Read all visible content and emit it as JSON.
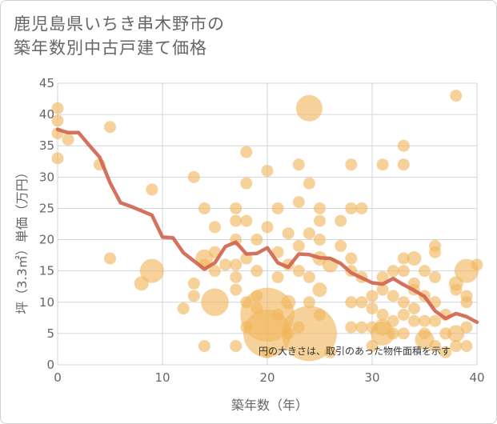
{
  "title_lines": [
    "鹿児島県いちき串木野市の",
    "築年数別中古戸建て価格"
  ],
  "colors": {
    "bubble": "#f0b65c",
    "line": "#d0634c",
    "grid": "#cfd6de",
    "text": "#666666"
  },
  "chart_data": {
    "type": "scatter",
    "xlabel": "築年数（年）",
    "ylabel": "坪（3.3㎡）単価（万円）",
    "xlim": [
      0,
      40
    ],
    "ylim": [
      0,
      45
    ],
    "x_ticks": [
      0,
      10,
      20,
      30,
      40
    ],
    "y_ticks": [
      0,
      5,
      10,
      15,
      20,
      25,
      30,
      35,
      40,
      45
    ],
    "annotation": "円の大きさは、取引のあった物件面積を示す",
    "bubbles": [
      {
        "x": 0,
        "y": 41,
        "s": 1
      },
      {
        "x": 0,
        "y": 39,
        "s": 1
      },
      {
        "x": 0,
        "y": 37,
        "s": 1
      },
      {
        "x": 0,
        "y": 33,
        "s": 1
      },
      {
        "x": 1,
        "y": 36,
        "s": 1
      },
      {
        "x": 4,
        "y": 32,
        "s": 1
      },
      {
        "x": 5,
        "y": 38,
        "s": 1
      },
      {
        "x": 5,
        "y": 17,
        "s": 1
      },
      {
        "x": 8,
        "y": 13,
        "s": 1.2
      },
      {
        "x": 9,
        "y": 15,
        "s": 2
      },
      {
        "x": 9,
        "y": 28,
        "s": 1
      },
      {
        "x": 12,
        "y": 9,
        "s": 1
      },
      {
        "x": 13,
        "y": 30,
        "s": 1
      },
      {
        "x": 13,
        "y": 13,
        "s": 1
      },
      {
        "x": 13,
        "y": 11,
        "s": 1
      },
      {
        "x": 14,
        "y": 25,
        "s": 1
      },
      {
        "x": 14,
        "y": 17,
        "s": 1.5
      },
      {
        "x": 14,
        "y": 16,
        "s": 1
      },
      {
        "x": 14,
        "y": 3,
        "s": 1
      },
      {
        "x": 15,
        "y": 22,
        "s": 1
      },
      {
        "x": 15,
        "y": 15,
        "s": 1
      },
      {
        "x": 15,
        "y": 10,
        "s": 2.3
      },
      {
        "x": 15,
        "y": 18,
        "s": 1
      },
      {
        "x": 16,
        "y": 16,
        "s": 1
      },
      {
        "x": 17,
        "y": 25,
        "s": 1
      },
      {
        "x": 17,
        "y": 23,
        "s": 1
      },
      {
        "x": 17,
        "y": 20,
        "s": 1
      },
      {
        "x": 17,
        "y": 16,
        "s": 1
      },
      {
        "x": 17,
        "y": 14,
        "s": 1
      },
      {
        "x": 17,
        "y": 12,
        "s": 1
      },
      {
        "x": 17,
        "y": 3,
        "s": 1
      },
      {
        "x": 18,
        "y": 34,
        "s": 1
      },
      {
        "x": 18,
        "y": 29,
        "s": 1
      },
      {
        "x": 18,
        "y": 23,
        "s": 1
      },
      {
        "x": 18,
        "y": 17,
        "s": 1
      },
      {
        "x": 18,
        "y": 10,
        "s": 1
      },
      {
        "x": 18,
        "y": 6,
        "s": 1
      },
      {
        "x": 19,
        "y": 20,
        "s": 1
      },
      {
        "x": 19,
        "y": 15,
        "s": 1
      },
      {
        "x": 19,
        "y": 11,
        "s": 1
      },
      {
        "x": 19,
        "y": 9,
        "s": 1
      },
      {
        "x": 20,
        "y": 31,
        "s": 1
      },
      {
        "x": 20,
        "y": 22,
        "s": 1
      },
      {
        "x": 20,
        "y": 8,
        "s": 4.5
      },
      {
        "x": 20,
        "y": 5,
        "s": 4
      },
      {
        "x": 20,
        "y": 2,
        "s": 1
      },
      {
        "x": 21,
        "y": 25,
        "s": 1
      },
      {
        "x": 21,
        "y": 18,
        "s": 1
      },
      {
        "x": 21,
        "y": 14,
        "s": 1
      },
      {
        "x": 21,
        "y": 8,
        "s": 1
      },
      {
        "x": 22,
        "y": 21,
        "s": 1
      },
      {
        "x": 22,
        "y": 16,
        "s": 1
      },
      {
        "x": 22,
        "y": 10,
        "s": 1.2
      },
      {
        "x": 22,
        "y": 5,
        "s": 1
      },
      {
        "x": 23,
        "y": 32,
        "s": 1
      },
      {
        "x": 23,
        "y": 26,
        "s": 1
      },
      {
        "x": 23,
        "y": 19,
        "s": 1
      },
      {
        "x": 23,
        "y": 15,
        "s": 1
      },
      {
        "x": 23,
        "y": 6,
        "s": 1
      },
      {
        "x": 24,
        "y": 41,
        "s": 2.2
      },
      {
        "x": 24,
        "y": 29,
        "s": 1
      },
      {
        "x": 24,
        "y": 21,
        "s": 1
      },
      {
        "x": 24,
        "y": 14,
        "s": 1
      },
      {
        "x": 24,
        "y": 10,
        "s": 1
      },
      {
        "x": 24,
        "y": 5,
        "s": 4.6
      },
      {
        "x": 25,
        "y": 25,
        "s": 1
      },
      {
        "x": 25,
        "y": 23,
        "s": 1
      },
      {
        "x": 25,
        "y": 20,
        "s": 1
      },
      {
        "x": 25,
        "y": 17,
        "s": 1.2
      },
      {
        "x": 25,
        "y": 12,
        "s": 1.2
      },
      {
        "x": 25,
        "y": 8,
        "s": 1
      },
      {
        "x": 26,
        "y": 16,
        "s": 1.3
      },
      {
        "x": 26,
        "y": 2,
        "s": 1
      },
      {
        "x": 27,
        "y": 23,
        "s": 1
      },
      {
        "x": 27,
        "y": 19,
        "s": 1
      },
      {
        "x": 28,
        "y": 32,
        "s": 1
      },
      {
        "x": 28,
        "y": 25,
        "s": 1
      },
      {
        "x": 28,
        "y": 17,
        "s": 1
      },
      {
        "x": 28,
        "y": 15,
        "s": 1
      },
      {
        "x": 28,
        "y": 10,
        "s": 1
      },
      {
        "x": 28,
        "y": 6,
        "s": 1
      },
      {
        "x": 29,
        "y": 25,
        "s": 1
      },
      {
        "x": 29,
        "y": 14,
        "s": 1
      },
      {
        "x": 29,
        "y": 10,
        "s": 1
      },
      {
        "x": 29,
        "y": 6,
        "s": 1
      },
      {
        "x": 30,
        "y": 11,
        "s": 1
      },
      {
        "x": 30,
        "y": 9,
        "s": 1
      },
      {
        "x": 30,
        "y": 6,
        "s": 1
      },
      {
        "x": 30,
        "y": 3,
        "s": 1
      },
      {
        "x": 31,
        "y": 32,
        "s": 1
      },
      {
        "x": 31,
        "y": 14,
        "s": 1
      },
      {
        "x": 31,
        "y": 12,
        "s": 1
      },
      {
        "x": 31,
        "y": 8,
        "s": 1
      },
      {
        "x": 31,
        "y": 6,
        "s": 1.4
      },
      {
        "x": 31,
        "y": 5,
        "s": 2
      },
      {
        "x": 32,
        "y": 15,
        "s": 1
      },
      {
        "x": 32,
        "y": 11,
        "s": 1
      },
      {
        "x": 32,
        "y": 7,
        "s": 1
      },
      {
        "x": 32,
        "y": 5,
        "s": 1
      },
      {
        "x": 33,
        "y": 35,
        "s": 1
      },
      {
        "x": 33,
        "y": 32,
        "s": 1
      },
      {
        "x": 33,
        "y": 17,
        "s": 1
      },
      {
        "x": 33,
        "y": 15,
        "s": 1
      },
      {
        "x": 33,
        "y": 10,
        "s": 1
      },
      {
        "x": 33,
        "y": 8,
        "s": 1
      },
      {
        "x": 33,
        "y": 5,
        "s": 1
      },
      {
        "x": 34,
        "y": 17,
        "s": 1.2
      },
      {
        "x": 34,
        "y": 13,
        "s": 1
      },
      {
        "x": 34,
        "y": 12,
        "s": 1
      },
      {
        "x": 34,
        "y": 9,
        "s": 1
      },
      {
        "x": 34,
        "y": 7,
        "s": 1
      },
      {
        "x": 35,
        "y": 15,
        "s": 1
      },
      {
        "x": 35,
        "y": 11,
        "s": 1
      },
      {
        "x": 35,
        "y": 7,
        "s": 1
      },
      {
        "x": 35,
        "y": 5,
        "s": 1
      },
      {
        "x": 35,
        "y": 4,
        "s": 1.6
      },
      {
        "x": 36,
        "y": 19,
        "s": 1
      },
      {
        "x": 36,
        "y": 18,
        "s": 1
      },
      {
        "x": 36,
        "y": 14,
        "s": 1
      },
      {
        "x": 36,
        "y": 10,
        "s": 1
      },
      {
        "x": 36,
        "y": 7,
        "s": 1
      },
      {
        "x": 36,
        "y": 3,
        "s": 1
      },
      {
        "x": 37,
        "y": 8,
        "s": 1
      },
      {
        "x": 37,
        "y": 5,
        "s": 1
      },
      {
        "x": 37,
        "y": 2,
        "s": 1
      },
      {
        "x": 38,
        "y": 43,
        "s": 1
      },
      {
        "x": 38,
        "y": 13,
        "s": 1.2
      },
      {
        "x": 38,
        "y": 12,
        "s": 1
      },
      {
        "x": 38,
        "y": 5,
        "s": 1.4
      },
      {
        "x": 38,
        "y": 3,
        "s": 1
      },
      {
        "x": 39,
        "y": 15,
        "s": 2
      },
      {
        "x": 39,
        "y": 11,
        "s": 1
      },
      {
        "x": 39,
        "y": 10,
        "s": 1
      },
      {
        "x": 39,
        "y": 6,
        "s": 1
      },
      {
        "x": 39,
        "y": 3,
        "s": 1
      },
      {
        "x": 40,
        "y": 16,
        "s": 1
      }
    ],
    "trend": {
      "x": [
        0,
        1,
        2,
        3,
        4,
        5,
        6,
        7,
        8,
        9,
        10,
        11,
        12,
        13,
        14,
        15,
        16,
        17,
        18,
        19,
        20,
        21,
        22,
        23,
        24,
        25,
        26,
        27,
        28,
        29,
        30,
        31,
        32,
        33,
        34,
        35,
        36,
        37,
        38,
        39,
        40
      ],
      "y": [
        37.6,
        37.1,
        37.1,
        35.1,
        33.2,
        29.1,
        25.9,
        25.3,
        24.6,
        23.9,
        20.4,
        20.3,
        17.9,
        16.6,
        15.3,
        16.3,
        18.9,
        19.6,
        17.7,
        17.8,
        18.7,
        16.3,
        15.6,
        17.7,
        17.6,
        17.1,
        17.0,
        16.2,
        14.7,
        13.9,
        13.1,
        12.9,
        13.8,
        12.8,
        11.9,
        10.9,
        8.6,
        7.4,
        8.2,
        7.7,
        6.8
      ]
    }
  }
}
